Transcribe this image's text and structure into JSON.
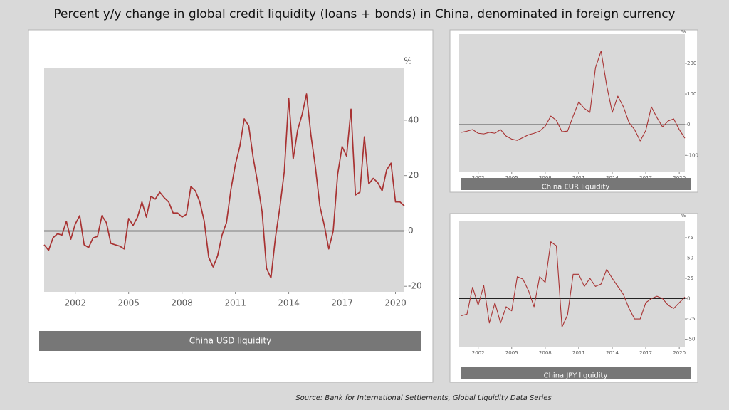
{
  "title": "Percent y/y change in global credit liquidity (loans + bonds) in China, denominated in foreign currency",
  "source": "Source:  Bank for International Settlements, Global Liquidity  Data Series",
  "chart_data": [
    {
      "type": "line",
      "caption": "China USD liquidity",
      "unit": "%",
      "color": "#a83232",
      "x": [
        2000.25,
        2000.5,
        2000.75,
        2001,
        2001.25,
        2001.5,
        2001.75,
        2002,
        2002.25,
        2002.5,
        2002.75,
        2003,
        2003.25,
        2003.5,
        2003.75,
        2004,
        2004.25,
        2004.5,
        2004.75,
        2005,
        2005.25,
        2005.5,
        2005.75,
        2006,
        2006.25,
        2006.5,
        2006.75,
        2007,
        2007.25,
        2007.5,
        2007.75,
        2008,
        2008.25,
        2008.5,
        2008.75,
        2009,
        2009.25,
        2009.5,
        2009.75,
        2010,
        2010.25,
        2010.5,
        2010.75,
        2011,
        2011.25,
        2011.5,
        2011.75,
        2012,
        2012.25,
        2012.5,
        2012.75,
        2013,
        2013.25,
        2013.5,
        2013.75,
        2014,
        2014.25,
        2014.5,
        2014.75,
        2015,
        2015.25,
        2015.5,
        2015.75,
        2016,
        2016.25,
        2016.5,
        2016.75,
        2017,
        2017.25,
        2017.5,
        2017.75,
        2018,
        2018.25,
        2018.5,
        2018.75,
        2019,
        2019.25,
        2019.5,
        2019.75,
        2020,
        2020.25,
        2020.5
      ],
      "values": [
        -5,
        -7,
        -2.5,
        -1,
        -1.5,
        3.5,
        -3,
        2.5,
        5.5,
        -5,
        -6,
        -2.5,
        -2,
        5.5,
        3,
        -4.5,
        -5,
        -5.5,
        -6.5,
        4.5,
        2,
        5,
        10.5,
        5,
        12.5,
        11.5,
        14,
        12,
        10.5,
        6.5,
        6.5,
        5,
        6,
        16,
        14.5,
        10.5,
        3.5,
        -9.5,
        -13,
        -9,
        -1.5,
        3,
        15,
        24,
        30.5,
        40.5,
        38,
        26.5,
        17.5,
        7,
        -13.5,
        -17,
        -2.5,
        8.5,
        21.5,
        48,
        26,
        36.5,
        42,
        49.5,
        34.5,
        23,
        9,
        2,
        -6.5,
        0,
        20.5,
        30.5,
        27,
        44,
        13,
        14,
        34,
        17,
        19,
        17.5,
        14.5,
        22,
        24.5,
        10.5,
        10.5,
        9
      ],
      "xlim": [
        2000.25,
        2020.5
      ],
      "xticks": [
        2002,
        2005,
        2008,
        2011,
        2014,
        2017,
        2020
      ],
      "ylim": [
        -22,
        59
      ],
      "yticks": [
        -20,
        0,
        20,
        40
      ]
    },
    {
      "type": "line",
      "caption": "China EUR liquidity",
      "unit": "%",
      "color": "#a83232",
      "x": [
        2000.5,
        2001,
        2001.5,
        2002,
        2002.5,
        2003,
        2003.5,
        2004,
        2004.5,
        2005,
        2005.5,
        2006,
        2006.5,
        2007,
        2007.5,
        2008,
        2008.5,
        2009,
        2009.5,
        2010,
        2010.5,
        2011,
        2011.5,
        2012,
        2012.5,
        2013,
        2013.5,
        2014,
        2014.5,
        2015,
        2015.5,
        2016,
        2016.5,
        2017,
        2017.5,
        2018,
        2018.5,
        2019,
        2019.5,
        2020,
        2020.5
      ],
      "values": [
        -25,
        -21,
        -16,
        -28,
        -30,
        -25,
        -28,
        -16,
        -37,
        -47,
        -51,
        -42,
        -33,
        -28,
        -21,
        -5,
        28,
        14,
        -23,
        -21,
        28,
        74,
        53,
        40,
        186,
        240,
        128,
        40,
        93,
        58,
        7,
        -16,
        -53,
        -19,
        58,
        23,
        -7,
        12,
        19,
        -16,
        -44
      ],
      "xlim": [
        2000.3,
        2020.5
      ],
      "xticks": [
        2002,
        2005,
        2008,
        2011,
        2014,
        2017,
        2020
      ],
      "ylim": [
        -155,
        295
      ],
      "yticks": [
        -100,
        0,
        100,
        200
      ]
    },
    {
      "type": "line",
      "caption": "China JPY liquidity",
      "unit": "%",
      "color": "#a83232",
      "x": [
        2000.5,
        2001,
        2001.5,
        2002,
        2002.5,
        2003,
        2003.5,
        2004,
        2004.5,
        2005,
        2005.5,
        2006,
        2006.5,
        2007,
        2007.5,
        2008,
        2008.5,
        2009,
        2009.5,
        2010,
        2010.5,
        2011,
        2011.5,
        2012,
        2012.5,
        2013,
        2013.5,
        2014,
        2014.5,
        2015,
        2015.5,
        2016,
        2016.5,
        2017,
        2017.5,
        2018,
        2018.5,
        2019,
        2019.5,
        2020,
        2020.5
      ],
      "values": [
        -21,
        -19,
        14,
        -8,
        16,
        -30,
        -5,
        -30,
        -10,
        -15,
        27,
        24,
        10,
        -10,
        27,
        20,
        70,
        65,
        -35,
        -20,
        30,
        30,
        15,
        25,
        15,
        18,
        36,
        25,
        15,
        5,
        -12,
        -25,
        -25,
        -5,
        0,
        3,
        0,
        -8,
        -12,
        -5,
        2
      ],
      "xlim": [
        2000.3,
        2020.5
      ],
      "xticks": [
        2002,
        2005,
        2008,
        2011,
        2014,
        2017,
        2020
      ],
      "ylim": [
        -60,
        96
      ],
      "yticks": [
        -50,
        -25,
        0,
        25,
        50,
        75
      ]
    }
  ]
}
